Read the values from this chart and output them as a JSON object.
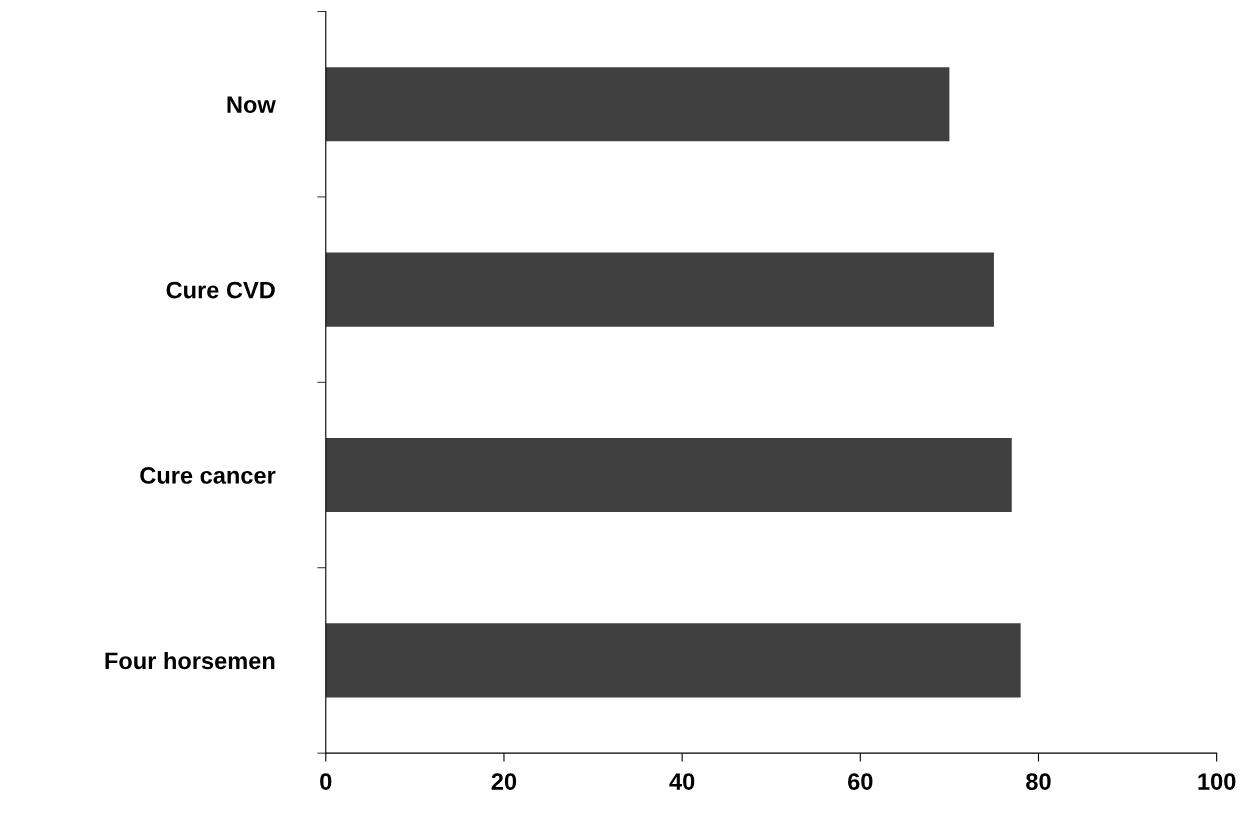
{
  "chart_data": {
    "type": "bar",
    "orientation": "horizontal",
    "categories": [
      "Now",
      "Cure CVD",
      "Cure cancer",
      "Four horsemen"
    ],
    "values": [
      70,
      75,
      77,
      78
    ],
    "color": "#404040",
    "xlim": [
      0,
      100
    ],
    "xticks": [
      0,
      20,
      40,
      60,
      80,
      100
    ],
    "grid": false,
    "legend": false
  }
}
